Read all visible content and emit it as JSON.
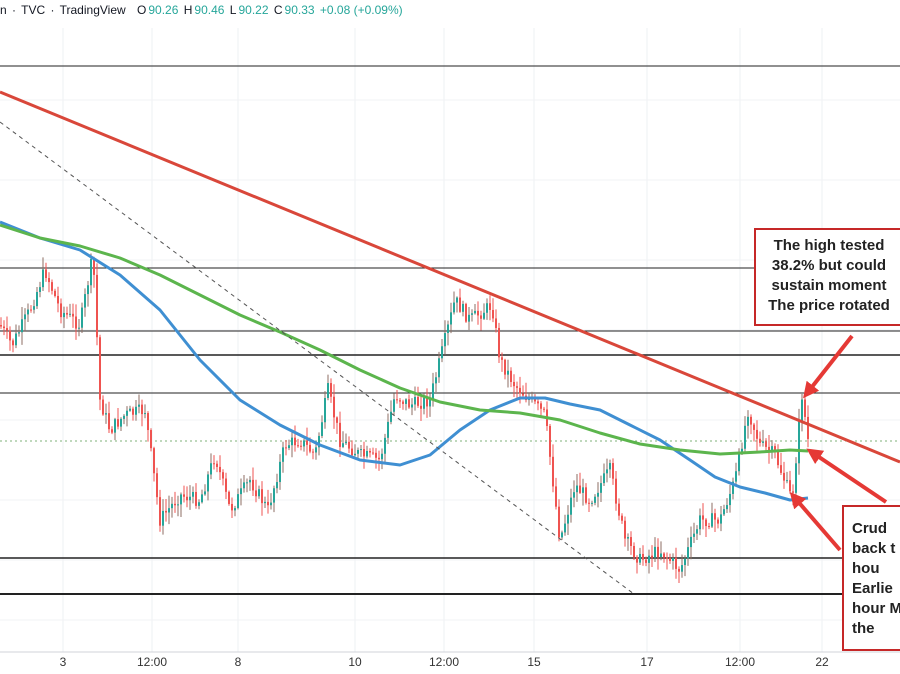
{
  "header": {
    "symbol_tail": "n",
    "separator": "·",
    "exchange": "TVC",
    "source": "TradingView",
    "open_label": "O",
    "open": "90.26",
    "high_label": "H",
    "high": "90.46",
    "low_label": "L",
    "low": "90.22",
    "close_label": "C",
    "close": "90.33",
    "change": "+0.08 (+0.09%)"
  },
  "x_axis_labels": [
    "3",
    "12:00",
    "8",
    "10",
    "12:00",
    "15",
    "17",
    "12:00",
    "22"
  ],
  "annotations": {
    "top_right": [
      "The high tested",
      "38.2% but could",
      "sustain moment",
      "The price rotated"
    ],
    "bottom_right": [
      "Crud",
      "back t",
      "hou",
      "Earlie",
      "hour M",
      "the"
    ]
  },
  "colors": {
    "up_candle": "#26a69a",
    "down_candle": "#ef5350",
    "wick_up": "#8d6e63",
    "ma_blue": "#3f8fd2",
    "ma_green": "#5cb54d",
    "trendline": "#d9473a",
    "arrow": "#e53935",
    "note_border": "#c62828"
  }
}
